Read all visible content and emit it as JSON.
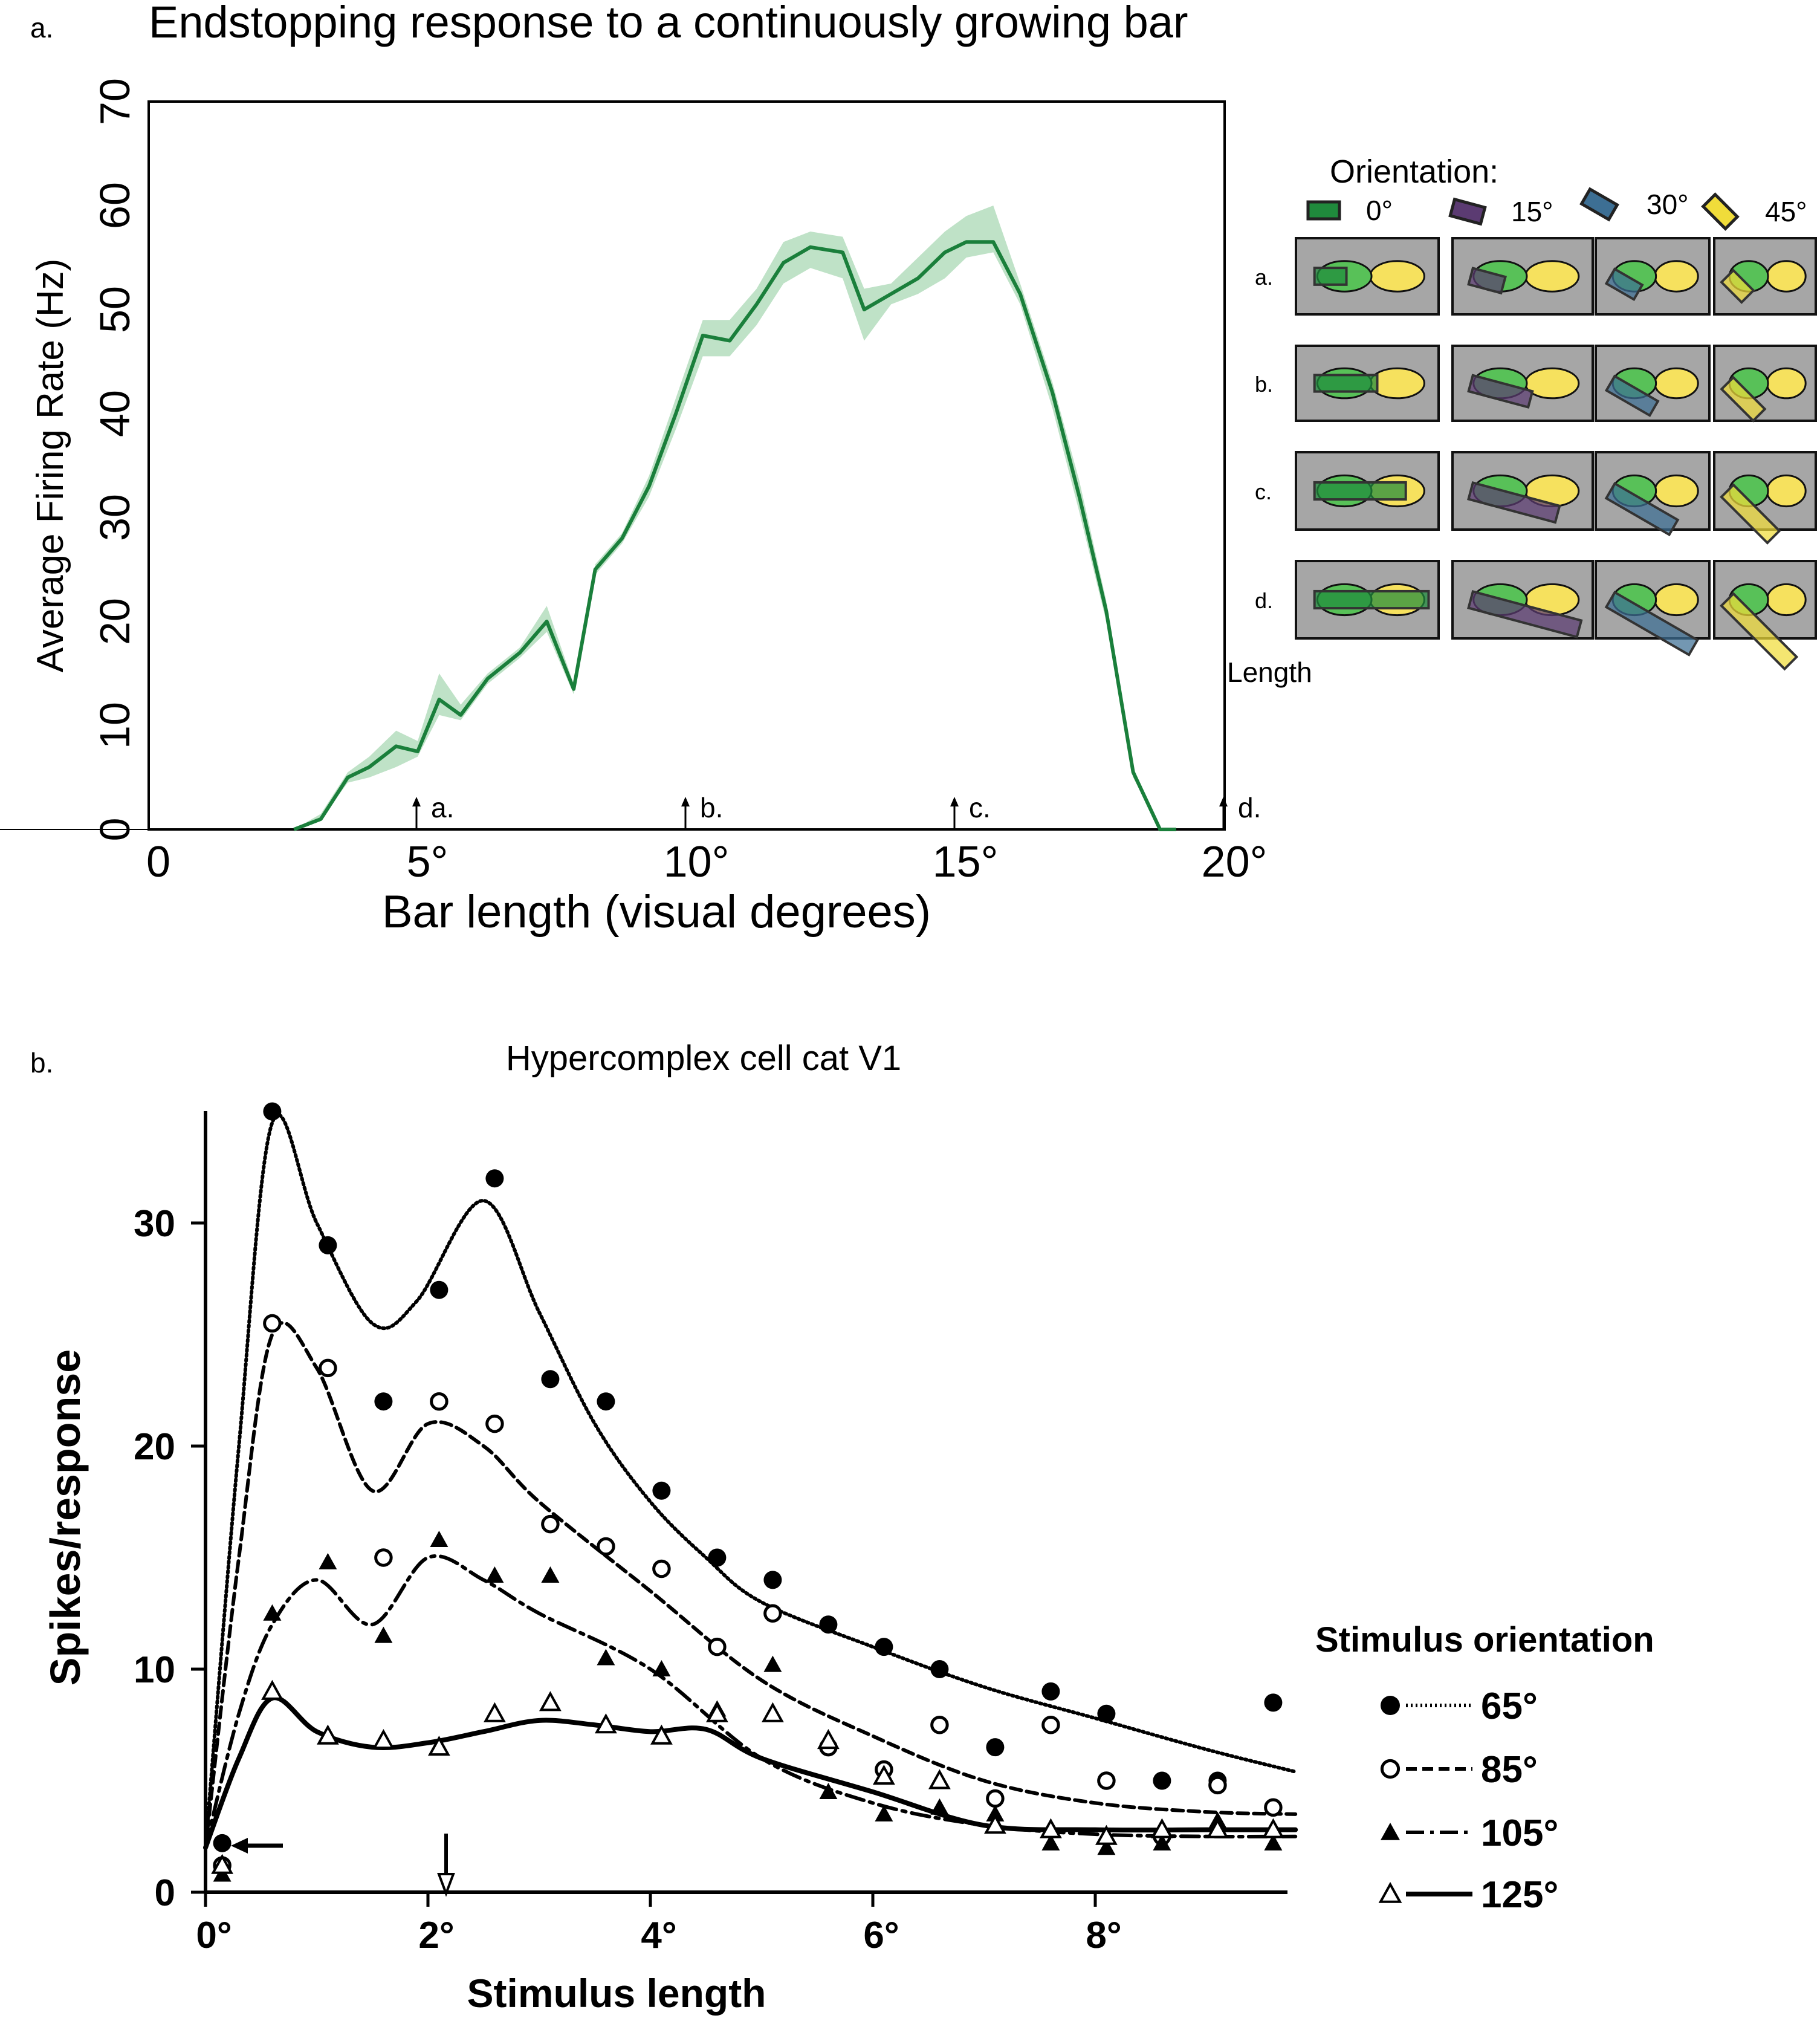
{
  "panel_a": {
    "label": "a.",
    "title": "Endstopping response to a continuously growing bar",
    "ylabel": "Average Firing Rate (Hz)",
    "xlabel": "Bar length (visual degrees)",
    "markers": [
      {
        "x": 5,
        "label": "a."
      },
      {
        "x": 10,
        "label": "b."
      },
      {
        "x": 15,
        "label": "c."
      },
      {
        "x": 20,
        "label": "d."
      }
    ],
    "line_color": "#1a7f3b",
    "band_color": "#a9d8b4"
  },
  "inset": {
    "legend_title": "Orientation:",
    "orientations": [
      {
        "label": "0°",
        "angle": 0,
        "color": "#1f8a3c"
      },
      {
        "label": "15°",
        "angle": 15,
        "color": "#5b3b72"
      },
      {
        "label": "30°",
        "angle": 30,
        "color": "#3d6f94"
      },
      {
        "label": "45°",
        "angle": 45,
        "color": "#f0dc3a"
      }
    ],
    "row_labels": [
      "a.",
      "b.",
      "c.",
      "d."
    ],
    "length_label": "Length",
    "tile_color": "#a6a6a6",
    "field_left_color": "#58c158",
    "field_right_color": "#f6e15e"
  },
  "panel_b": {
    "label": "b.",
    "title": "Hypercomplex cell cat V1",
    "ylabel": "Spikes/response",
    "xlabel": "Stimulus length",
    "legend_title": "Stimulus orientation"
  },
  "chart_data": [
    {
      "type": "line",
      "title": "Endstopping response to a continuously growing bar",
      "xlabel": "Bar length (visual degrees)",
      "ylabel": "Average Firing Rate (Hz)",
      "xlim": [
        0,
        20
      ],
      "ylim": [
        0,
        70
      ],
      "xticks": [
        0,
        5,
        10,
        15,
        20
      ],
      "xtick_labels": [
        "0",
        "5°",
        "10°",
        "15°",
        "20°"
      ],
      "yticks": [
        0,
        10,
        20,
        30,
        40,
        50,
        60,
        70
      ],
      "grid": false,
      "series": [
        {
          "x": [
            2.7,
            3.2,
            3.7,
            4.1,
            4.6,
            5.0,
            5.4,
            5.8,
            6.3,
            6.9,
            7.4,
            7.9,
            8.3,
            8.8,
            9.3,
            9.8,
            10.3,
            10.8,
            11.3,
            11.8,
            12.3,
            12.9,
            13.3,
            13.8,
            14.3,
            14.8,
            15.2,
            15.7,
            16.2,
            16.8,
            17.3,
            17.8,
            18.3,
            18.8,
            19.1
          ],
          "y": [
            0,
            1,
            5,
            6,
            8,
            7.5,
            12.5,
            11,
            14.5,
            17,
            20,
            13.5,
            25,
            28,
            33,
            40,
            47.5,
            47,
            50.5,
            54.5,
            56,
            55.5,
            50,
            51.5,
            53,
            55.5,
            56.5,
            56.5,
            51.5,
            42,
            32,
            21,
            5.5,
            0,
            0
          ],
          "lower": [
            0,
            1,
            4.5,
            5,
            6,
            7,
            11,
            10.5,
            14,
            16.5,
            19,
            13,
            24.5,
            27.5,
            32,
            38.5,
            45.5,
            45.5,
            48.5,
            52.5,
            54,
            53,
            47,
            50.5,
            51.5,
            53,
            55,
            55.5,
            50.5,
            40.5,
            30.5,
            20,
            5,
            0,
            0
          ],
          "upper": [
            0,
            1.5,
            5.5,
            7,
            9.5,
            8.5,
            15,
            12,
            15,
            17.5,
            21.5,
            14,
            25.5,
            28.5,
            34,
            41.5,
            49,
            49,
            52,
            56.5,
            57.5,
            57,
            52,
            52.5,
            55,
            57.5,
            59,
            60,
            52.5,
            43,
            33.5,
            22,
            6,
            0,
            0
          ]
        }
      ]
    },
    {
      "type": "scatter",
      "title": "Hypercomplex cell cat V1",
      "xlabel": "Stimulus length",
      "ylabel": "Spikes/response",
      "xlim": [
        0,
        9.8
      ],
      "ylim": [
        0,
        35
      ],
      "xticks": [
        0,
        2,
        4,
        6,
        8
      ],
      "xtick_labels": [
        "0°",
        "2°",
        "4°",
        "6°",
        "8°"
      ],
      "yticks": [
        0,
        10,
        20,
        30
      ],
      "grid": false,
      "legend": "right",
      "series": [
        {
          "name": "65°",
          "marker": "filled-circle",
          "line": "dotted",
          "x": [
            0.15,
            0.6,
            1.1,
            1.6,
            2.1,
            2.6,
            3.1,
            3.6,
            4.1,
            4.6,
            5.1,
            5.6,
            6.1,
            6.6,
            7.1,
            7.6,
            8.1,
            8.6,
            9.1,
            9.6
          ],
          "y": [
            2.2,
            35,
            29,
            22,
            27,
            32,
            23,
            22,
            18,
            15,
            14,
            12,
            11,
            10,
            6.5,
            9,
            8,
            5,
            5,
            8.5
          ],
          "fit_x": [
            0,
            0.3,
            0.6,
            1.0,
            1.5,
            1.9,
            2.5,
            3.0,
            3.5,
            4.0,
            4.5,
            5.0,
            6.0,
            7.0,
            8.0,
            9.0,
            9.8
          ],
          "fit_y": [
            2,
            20,
            34.5,
            30,
            25.5,
            26.5,
            31,
            26,
            21,
            17.5,
            15,
            13,
            11,
            9.2,
            7.8,
            6.4,
            5.4
          ]
        },
        {
          "name": "85°",
          "marker": "open-circle",
          "line": "dashed",
          "x": [
            0.15,
            0.6,
            1.1,
            1.6,
            2.1,
            2.6,
            3.1,
            3.6,
            4.1,
            4.6,
            5.1,
            5.6,
            6.1,
            6.6,
            7.1,
            7.6,
            8.1,
            8.6,
            9.1,
            9.6
          ],
          "y": [
            1.2,
            25.5,
            23.5,
            15,
            22,
            21,
            16.5,
            15.5,
            14.5,
            11,
            12.5,
            6.5,
            5.5,
            7.5,
            4.2,
            7.5,
            5,
            2.5,
            4.8,
            3.8
          ],
          "fit_x": [
            0,
            0.3,
            0.6,
            1.0,
            1.5,
            2.0,
            2.5,
            3.0,
            4.0,
            5.0,
            6.0,
            7.0,
            8.0,
            9.0,
            9.8
          ],
          "fit_y": [
            2,
            15,
            25,
            23.5,
            18,
            21,
            20,
            17.5,
            13.5,
            9.5,
            7,
            5,
            4,
            3.6,
            3.5
          ]
        },
        {
          "name": "105°",
          "marker": "filled-triangle",
          "line": "dash-dot",
          "x": [
            0.15,
            0.6,
            1.1,
            1.6,
            2.1,
            2.6,
            3.1,
            3.6,
            4.1,
            4.6,
            5.1,
            5.6,
            6.1,
            6.6,
            7.1,
            7.6,
            8.1,
            8.6,
            9.1,
            9.6
          ],
          "y": [
            0.8,
            12.5,
            14.8,
            11.5,
            15.8,
            14.2,
            14.2,
            10.5,
            10,
            8.2,
            10.2,
            4.5,
            3.5,
            3.8,
            3.5,
            2.2,
            2,
            2.2,
            3.2,
            2.2
          ],
          "fit_x": [
            0,
            0.3,
            0.6,
            1.0,
            1.5,
            2.0,
            2.5,
            3.0,
            4.0,
            5.0,
            6.0,
            7.0,
            8.0,
            9.0,
            9.8
          ],
          "fit_y": [
            2,
            8,
            12,
            14,
            12,
            15,
            14,
            12.5,
            10,
            6,
            4,
            3,
            2.6,
            2.5,
            2.5
          ]
        },
        {
          "name": "125°",
          "marker": "open-triangle",
          "line": "solid",
          "x": [
            0.15,
            0.6,
            1.1,
            1.6,
            2.1,
            2.6,
            3.1,
            3.6,
            4.1,
            4.6,
            5.1,
            5.6,
            6.1,
            6.6,
            7.1,
            7.6,
            8.1,
            8.6,
            9.1,
            9.6
          ],
          "y": [
            1.2,
            9,
            7,
            6.8,
            6.5,
            8,
            8.5,
            7.5,
            7,
            8,
            8,
            6.8,
            5.2,
            5,
            3,
            2.8,
            2.5,
            2.8,
            2.8,
            2.8
          ],
          "fit_x": [
            0,
            0.3,
            0.6,
            1.0,
            1.5,
            2.0,
            2.5,
            3.0,
            3.5,
            4.0,
            4.5,
            5.0,
            6.0,
            7.0,
            8.0,
            9.0,
            9.8
          ],
          "fit_y": [
            2,
            6,
            8.7,
            7.2,
            6.5,
            6.7,
            7.2,
            7.7,
            7.5,
            7.2,
            7.3,
            6,
            4.5,
            3,
            2.8,
            2.8,
            2.8
          ]
        }
      ]
    }
  ]
}
